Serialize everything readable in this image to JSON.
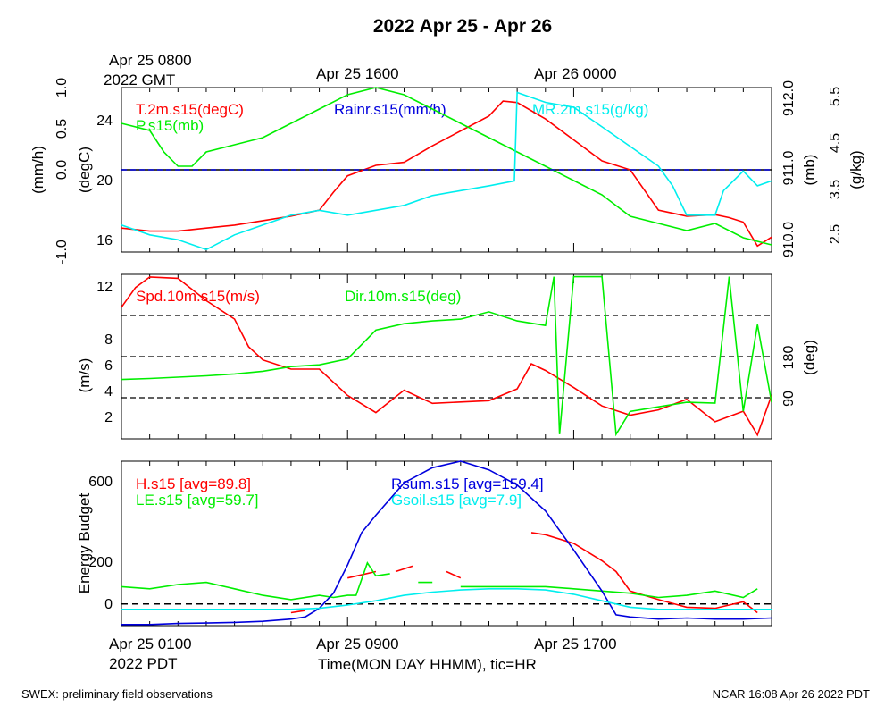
{
  "title": "2022 Apr 25 - Apr 26",
  "colors": {
    "red": "#ff0000",
    "green": "#00ee00",
    "blue": "#0000dd",
    "cyan": "#00eeee",
    "black": "#000000"
  },
  "top_axis": {
    "labels": [
      "Apr 25 0800",
      "Apr 25 1600",
      "Apr 26 0000"
    ],
    "year_label": "2022 GMT"
  },
  "bottom_axis": {
    "labels": [
      "Apr 25 0100",
      "Apr 25 0900",
      "Apr 25 1700"
    ],
    "year_label": "2022 PDT",
    "xlabel": "Time(MON DAY HHMM), tic=HR"
  },
  "footer": {
    "left": "SWEX: preliminary field observations",
    "right": "NCAR 16:08 Apr 26 2022 PDT"
  },
  "chart_data": [
    {
      "type": "line",
      "panel": "top",
      "x_range_hours": [
        0,
        23
      ],
      "left_outer_axis": {
        "label": "(mm/h)",
        "ticks": [
          "-1.0",
          "0.0",
          "0.5",
          "1.0"
        ],
        "ylim": [
          -1.0,
          1.0
        ]
      },
      "left_inner_axis": {
        "label": "(degC)",
        "ticks": [
          "16",
          "20",
          "24"
        ],
        "ylim": [
          15.5,
          26.5
        ]
      },
      "right_inner_axis": {
        "label": "(mb)",
        "ticks": [
          "910.0",
          "911.0",
          "912.0"
        ],
        "ylim": [
          909.8,
          912.1
        ]
      },
      "right_outer_axis": {
        "label": "(g/kg)",
        "ticks": [
          "2.5",
          "3.5",
          "4.5",
          "5.5"
        ],
        "ylim": [
          2.25,
          5.6
        ]
      },
      "series": [
        {
          "name": "T.2m.s15(degC)",
          "color": "red",
          "axis": "left_inner",
          "x": [
            0,
            1,
            2,
            3,
            4,
            5,
            6,
            7,
            7.5,
            8,
            9,
            10,
            11,
            12,
            13,
            13.5,
            14,
            15,
            16,
            17,
            18,
            19,
            20,
            21,
            21.5,
            22,
            22.5,
            23
          ],
          "y": [
            17.1,
            16.9,
            16.9,
            17.1,
            17.3,
            17.6,
            17.9,
            18.3,
            19.5,
            20.6,
            21.3,
            21.5,
            22.6,
            23.6,
            24.6,
            25.6,
            25.5,
            24.4,
            23.0,
            21.6,
            21.0,
            18.3,
            17.9,
            18.0,
            17.8,
            17.5,
            15.9,
            16.5
          ]
        },
        {
          "name": "P.s15(mb)",
          "color": "green",
          "axis": "right_inner",
          "x": [
            0,
            1,
            1.5,
            2,
            2.5,
            3,
            4,
            5,
            6,
            7,
            8,
            9,
            10,
            11,
            12,
            13,
            14,
            15,
            16,
            17,
            18,
            19,
            20,
            21,
            22,
            23
          ],
          "y": [
            911.6,
            911.5,
            911.2,
            911.0,
            911.0,
            911.2,
            911.3,
            911.4,
            911.6,
            911.8,
            912.0,
            912.1,
            912.0,
            911.8,
            911.6,
            911.4,
            911.2,
            911.0,
            910.8,
            910.6,
            910.3,
            910.2,
            910.1,
            910.2,
            910.0,
            909.9
          ]
        },
        {
          "name": "Rainr.s15(mm/h)",
          "color": "blue",
          "axis": "left_outer",
          "x": [
            0,
            23
          ],
          "y": [
            0.0,
            0.0
          ]
        },
        {
          "name": "MR.2m.s15(g/kg)",
          "color": "cyan",
          "axis": "right_outer",
          "x": [
            0,
            1,
            2,
            3,
            4,
            5,
            6,
            7,
            8,
            9,
            10,
            11,
            12,
            13,
            13.9,
            14,
            15,
            16,
            17,
            18,
            19,
            19.5,
            20,
            21,
            21.3,
            22,
            22.5,
            23
          ],
          "y": [
            2.8,
            2.6,
            2.5,
            2.3,
            2.6,
            2.8,
            3.0,
            3.1,
            3.0,
            3.1,
            3.2,
            3.4,
            3.5,
            3.6,
            3.7,
            5.5,
            5.3,
            5.2,
            4.8,
            4.4,
            4.0,
            3.6,
            3.0,
            3.0,
            3.5,
            3.9,
            3.6,
            3.7
          ]
        }
      ]
    },
    {
      "type": "line",
      "panel": "middle",
      "x_range_hours": [
        0,
        23
      ],
      "left_axis": {
        "label": "(m/s)",
        "ticks": [
          "2",
          "4",
          "6",
          "8",
          "12"
        ],
        "ylim": [
          0.5,
          13.0
        ]
      },
      "right_axis": {
        "label": "(deg)",
        "ticks": [
          "90",
          "180"
        ],
        "ylim": [
          0,
          360
        ]
      },
      "reference_lines_deg": [
        90,
        180,
        270
      ],
      "series": [
        {
          "name": "Spd.10m.s15(m/s)",
          "color": "red",
          "axis": "left",
          "x": [
            0,
            0.5,
            1,
            2,
            3,
            4,
            4.5,
            5,
            6,
            7,
            8,
            9,
            10,
            11,
            12,
            13,
            14,
            14.5,
            15,
            16,
            17,
            18,
            19,
            20,
            21,
            22,
            22.5,
            23
          ],
          "y": [
            10.5,
            12.0,
            12.8,
            12.7,
            11.0,
            9.6,
            7.5,
            6.5,
            5.8,
            5.8,
            3.8,
            2.5,
            4.2,
            3.2,
            3.3,
            3.4,
            4.3,
            6.2,
            5.7,
            4.4,
            3.0,
            2.3,
            2.7,
            3.5,
            1.8,
            2.6,
            0.8,
            3.8
          ]
        },
        {
          "name": "Dir.10m.s15(deg)",
          "color": "green",
          "axis": "right",
          "x": [
            0,
            1,
            2,
            3,
            4,
            5,
            6,
            7,
            8,
            9,
            10,
            11,
            12,
            13,
            14,
            15,
            15.3,
            15.5,
            16,
            17,
            17.5,
            18,
            19,
            20,
            21,
            21.5,
            22,
            22.5,
            23
          ],
          "y": [
            130,
            132,
            135,
            138,
            142,
            148,
            158,
            162,
            175,
            238,
            252,
            258,
            262,
            278,
            258,
            248,
            355,
            10,
            355,
            355,
            10,
            60,
            70,
            80,
            78,
            355,
            60,
            250,
            80
          ]
        }
      ]
    },
    {
      "type": "line",
      "panel": "bottom",
      "x_range_hours": [
        0,
        23
      ],
      "left_axis": {
        "label": "Energy Budget",
        "ticks": [
          "0",
          "200",
          "600"
        ],
        "ylim": [
          -100,
          660
        ]
      },
      "series": [
        {
          "name": "H.s15 [avg=89.8]",
          "color": "red",
          "x": [
            6,
            6.5,
            null,
            8,
            9,
            null,
            9.7,
            10.3,
            null,
            11.5,
            12,
            null,
            14.5,
            15,
            16,
            17,
            17.5,
            18,
            19,
            20,
            21,
            22,
            22.5
          ],
          "y": [
            -40,
            -30,
            null,
            120,
            150,
            null,
            150,
            175,
            null,
            150,
            120,
            null,
            330,
            320,
            280,
            200,
            150,
            60,
            20,
            -15,
            -20,
            10,
            -40
          ]
        },
        {
          "name": "LE.s15 [avg=59.7]",
          "color": "green",
          "x": [
            0,
            1,
            2,
            3,
            4,
            5,
            6,
            7,
            7.5,
            8,
            8.3,
            8.7,
            9,
            9.5,
            null,
            10.5,
            11,
            null,
            12,
            13,
            14,
            15,
            16,
            17,
            18,
            19,
            20,
            21,
            22,
            22.5
          ],
          "y": [
            80,
            70,
            90,
            100,
            70,
            40,
            20,
            40,
            30,
            40,
            40,
            190,
            130,
            140,
            null,
            100,
            100,
            null,
            80,
            80,
            80,
            80,
            70,
            60,
            50,
            30,
            40,
            60,
            30,
            70
          ]
        },
        {
          "name": "Rsum.s15 [avg=159.4]",
          "color": "blue",
          "x": [
            0,
            1,
            2,
            3,
            4,
            5,
            6,
            6.5,
            7,
            7.5,
            8,
            8.5,
            9,
            10,
            11,
            12,
            13,
            14,
            15,
            16,
            17,
            17.5,
            18,
            19,
            20,
            21,
            22,
            23
          ],
          "y": [
            -95,
            -95,
            -90,
            -88,
            -85,
            -80,
            -70,
            -60,
            -20,
            50,
            180,
            330,
            410,
            560,
            630,
            660,
            620,
            550,
            430,
            250,
            60,
            -50,
            -60,
            -70,
            -65,
            -70,
            -70,
            -65
          ]
        },
        {
          "name": "Gsoil.s15 [avg=7.9]",
          "color": "cyan",
          "x": [
            0,
            2,
            4,
            6,
            7,
            8,
            9,
            10,
            11,
            12,
            13,
            14,
            15,
            16,
            17,
            18,
            19,
            20,
            21,
            22,
            23
          ],
          "y": [
            -25,
            -25,
            -25,
            -25,
            -20,
            -5,
            15,
            40,
            55,
            65,
            70,
            70,
            65,
            45,
            15,
            -15,
            -25,
            -25,
            -25,
            -25,
            -25
          ]
        }
      ],
      "reference_line_y": 0
    }
  ]
}
